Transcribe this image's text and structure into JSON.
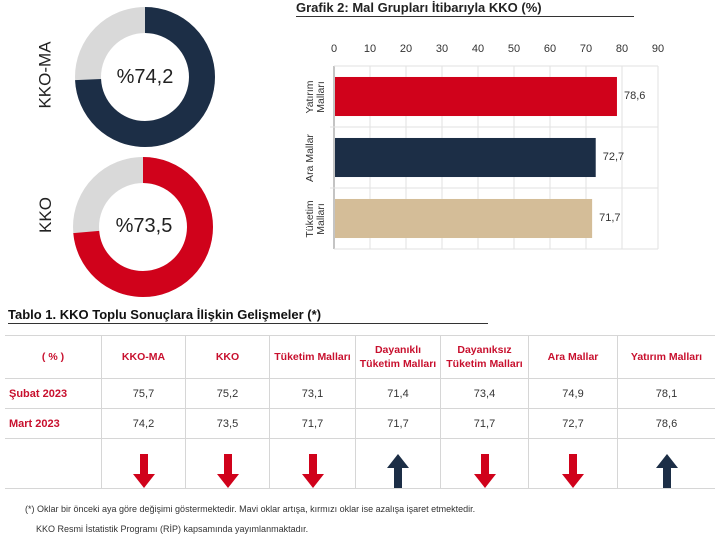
{
  "donuts": [
    {
      "label": "KKO-MA",
      "value": 74.2,
      "display": "%74,2",
      "color": "#1c2e46",
      "rest_color": "#d9d9d9"
    },
    {
      "label": "KKO",
      "value": 73.5,
      "display": "%73,5",
      "color": "#d0021b",
      "rest_color": "#d9d9d9"
    }
  ],
  "chart_data": {
    "type": "bar",
    "orientation": "horizontal",
    "title": "Grafik 2: Mal Grupları İtibarıyla KKO (%)",
    "categories": [
      "Yatırım Malları",
      "Ara Mallar",
      "Tüketim Malları"
    ],
    "category_lines": [
      [
        "Yatırım",
        "Malları"
      ],
      [
        "Ara Mallar"
      ],
      [
        "Tüketim",
        "Malları"
      ]
    ],
    "values": [
      78.6,
      72.7,
      71.7
    ],
    "value_labels": [
      "78,6",
      "72,7",
      "71,7"
    ],
    "colors": [
      "#d0021b",
      "#1c2e46",
      "#d4bd98"
    ],
    "xlim": [
      0,
      90
    ],
    "xticks": [
      0,
      10,
      20,
      30,
      40,
      50,
      60,
      70,
      80,
      90
    ],
    "xaxis_position": "top",
    "grid": true
  },
  "table": {
    "title": "Tablo 1. KKO Toplu Sonuçlara İlişkin Gelişmeler (*)",
    "headers": [
      "( % )",
      "KKO-MA",
      "KKO",
      "Tüketim Malları",
      "Dayanıklı Tüketim Malları",
      "Dayanıksız Tüketim Malları",
      "Ara Mallar",
      "Yatırım Malları"
    ],
    "rows": [
      {
        "label": "Şubat 2023",
        "values": [
          "75,7",
          "75,2",
          "73,1",
          "71,4",
          "73,4",
          "74,9",
          "78,1"
        ]
      },
      {
        "label": "Mart 2023",
        "values": [
          "74,2",
          "73,5",
          "71,7",
          "71,7",
          "71,7",
          "72,7",
          "78,6"
        ]
      }
    ],
    "arrows": [
      "down",
      "down",
      "down",
      "up",
      "down",
      "down",
      "up"
    ],
    "arrow_colors": {
      "down": "#d0021b",
      "up": "#1c2e46"
    }
  },
  "notes": [
    "(*) Oklar bir önceki aya göre değişimi göstermektedir. Mavi oklar artışa, kırmızı oklar ise azalışa işaret etmektedir.",
    "KKO Resmi İstatistik Programı (RİP) kapsamında yayımlanmaktadır."
  ]
}
